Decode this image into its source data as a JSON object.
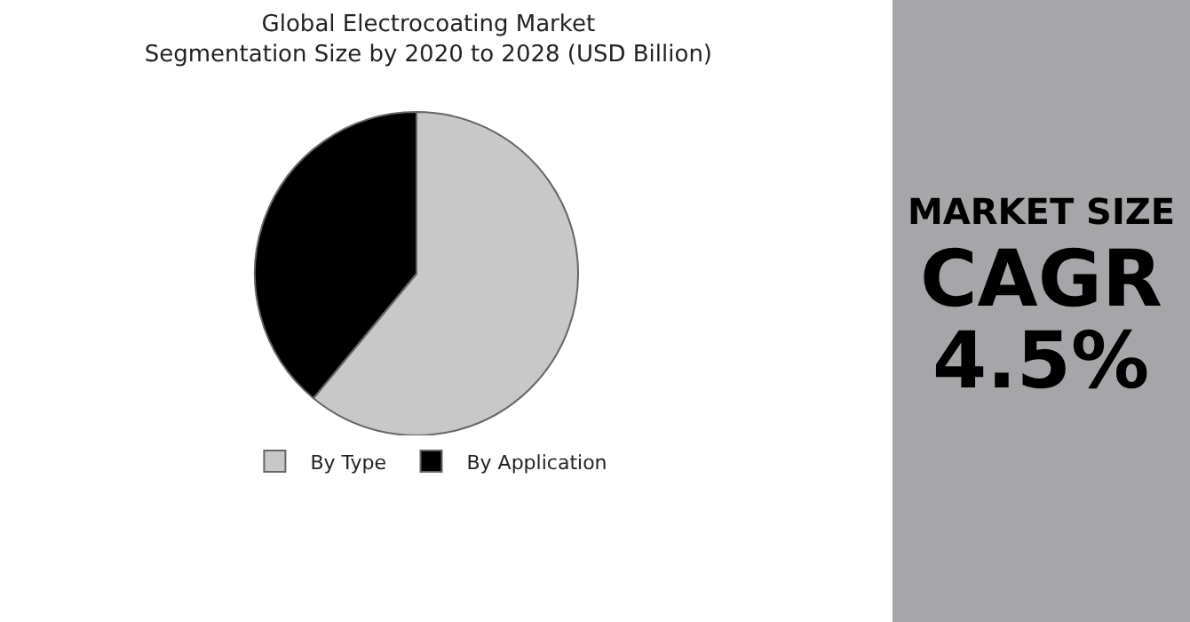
{
  "chart_data": {
    "type": "pie",
    "title": "Global Electrocoating Market\nSegmentation Size by 2020 to 2028 (USD Billion)",
    "categories": [
      "By Type",
      "By Application"
    ],
    "values": [
      61,
      39
    ],
    "colors": [
      "#c8c8c8",
      "#000000"
    ],
    "legend": "bottom",
    "annotations": [
      "MARKET SIZE",
      "CAGR",
      "4.5%"
    ]
  }
}
